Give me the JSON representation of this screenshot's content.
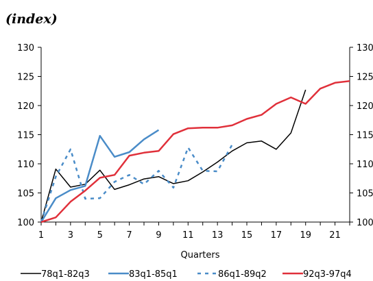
{
  "chart_data": {
    "type": "line",
    "title": "(index)",
    "xlabel": "Quarters",
    "ylabel": "",
    "x": [
      1,
      2,
      3,
      4,
      5,
      6,
      7,
      8,
      9,
      10,
      11,
      12,
      13,
      14,
      15,
      16,
      17,
      18,
      19,
      20,
      21,
      22
    ],
    "xticks": [
      1,
      3,
      5,
      7,
      9,
      11,
      13,
      15,
      17,
      19,
      21
    ],
    "xlim": [
      1,
      22
    ],
    "ylim": [
      100,
      130
    ],
    "yticks": [
      100,
      105,
      110,
      115,
      120,
      125,
      130
    ],
    "secondary_y_axis": true,
    "grid": false,
    "legend_position": "bottom",
    "series": [
      {
        "name": "78q1-82q3",
        "color": "#000000",
        "style": "solid",
        "x": [
          1,
          2,
          3,
          4,
          5,
          6,
          7,
          8,
          9,
          10,
          11,
          12,
          13,
          14,
          15,
          16,
          17,
          18,
          19
        ],
        "values": [
          100,
          109.1,
          106,
          106.5,
          108.9,
          105.6,
          106.4,
          107.4,
          107.8,
          106.6,
          107.1,
          108.6,
          110.3,
          112.2,
          113.6,
          113.9,
          112.5,
          115.3,
          122.7
        ]
      },
      {
        "name": "83q1-85q1",
        "color": "#4a8cc8",
        "style": "solid",
        "x": [
          1,
          2,
          3,
          4,
          5,
          6,
          7,
          8,
          9
        ],
        "values": [
          100,
          104.1,
          105.5,
          106.2,
          114.8,
          111.2,
          112,
          114.2,
          115.8
        ]
      },
      {
        "name": "86q1-89q2",
        "color": "#4a8cc8",
        "style": "dashed",
        "x": [
          1,
          2,
          3,
          4,
          5,
          6,
          7,
          8,
          9,
          10,
          11,
          12,
          13,
          14
        ],
        "values": [
          100,
          107.8,
          112.5,
          104,
          104.1,
          106.9,
          108.1,
          106.5,
          108.8,
          105.9,
          112.8,
          108.8,
          108.7,
          113.3
        ]
      },
      {
        "name": "92q3-97q4",
        "color": "#e0303a",
        "style": "solid",
        "x": [
          1,
          2,
          3,
          4,
          5,
          6,
          7,
          8,
          9,
          10,
          11,
          12,
          13,
          14,
          15,
          16,
          17,
          18,
          19,
          20,
          21,
          22
        ],
        "values": [
          100,
          100.8,
          103.5,
          105.4,
          107.6,
          108.1,
          111.4,
          111.9,
          112.2,
          115.1,
          116.1,
          116.2,
          116.2,
          116.6,
          117.7,
          118.4,
          120.3,
          121.4,
          120.3,
          122.9,
          123.9,
          124.2
        ]
      }
    ]
  }
}
